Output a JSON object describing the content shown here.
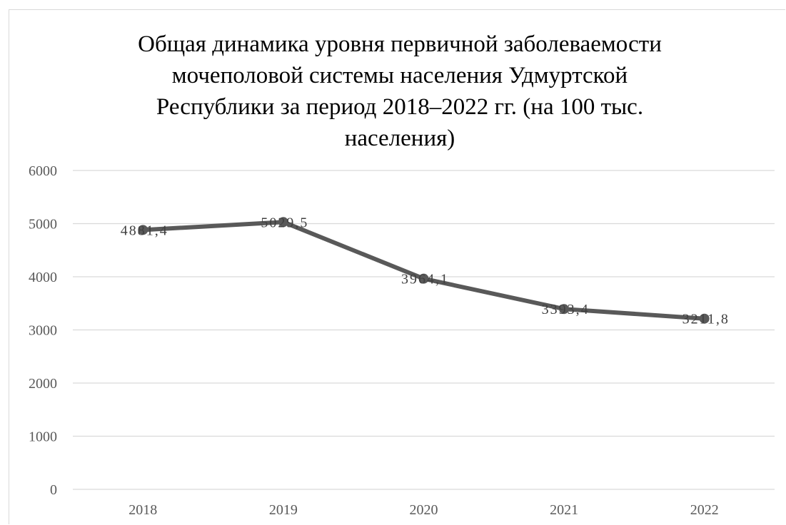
{
  "chart_data": {
    "type": "line",
    "title_lines": [
      "Общая динамика уровня первичной заболеваемости",
      "мочеполовой системы населения Удмуртской",
      "Республики за период 2018–2022  гг. (на 100 тыс.",
      "населения)"
    ],
    "categories": [
      "2018",
      "2019",
      "2020",
      "2021",
      "2022"
    ],
    "values": [
      4881.4,
      5029.5,
      3964.1,
      3393.4,
      3211.8
    ],
    "data_labels": [
      "4881,4",
      "5029,5",
      "3964,1",
      "3393,4",
      "3211,8"
    ],
    "y_ticks": [
      "0",
      "1000",
      "2000",
      "3000",
      "4000",
      "5000",
      "6000"
    ],
    "ylim": [
      0,
      6000
    ],
    "grid": true,
    "line_color": "#595959",
    "grid_color": "#d9d9d9"
  }
}
